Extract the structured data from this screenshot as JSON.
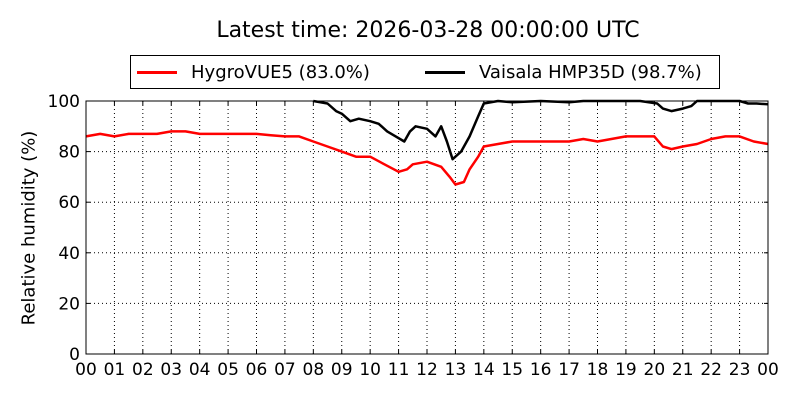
{
  "chart_data": {
    "type": "line",
    "title": "Latest time: 2026-03-28 00:00:00 UTC",
    "xlabel": "",
    "ylabel": "Relative humidity (%)",
    "x_ticks": [
      "00",
      "01",
      "02",
      "03",
      "04",
      "05",
      "06",
      "07",
      "08",
      "09",
      "10",
      "11",
      "12",
      "13",
      "14",
      "15",
      "16",
      "17",
      "18",
      "19",
      "20",
      "21",
      "22",
      "23",
      "00"
    ],
    "xlim": [
      0,
      24
    ],
    "ylim": [
      0,
      100
    ],
    "y_ticks": [
      0,
      20,
      40,
      60,
      80,
      100
    ],
    "grid": true,
    "legend_position": "top",
    "series": [
      {
        "name": "HygroVUE5 (83.0%)",
        "color": "#ff0000",
        "points": [
          [
            0,
            86
          ],
          [
            0.5,
            87
          ],
          [
            1,
            86
          ],
          [
            1.5,
            87
          ],
          [
            2,
            87
          ],
          [
            2.5,
            87
          ],
          [
            3,
            88
          ],
          [
            3.5,
            88
          ],
          [
            4,
            87
          ],
          [
            4.5,
            87
          ],
          [
            5,
            87
          ],
          [
            5.5,
            87
          ],
          [
            6,
            87
          ],
          [
            6.5,
            86.5
          ],
          [
            7,
            86
          ],
          [
            7.5,
            86
          ],
          [
            8,
            84
          ],
          [
            8.5,
            82
          ],
          [
            9,
            80
          ],
          [
            9.5,
            78
          ],
          [
            10,
            78
          ],
          [
            10.5,
            75
          ],
          [
            11,
            72
          ],
          [
            11.3,
            73
          ],
          [
            11.5,
            75
          ],
          [
            12,
            76
          ],
          [
            12.5,
            74
          ],
          [
            12.8,
            70
          ],
          [
            13,
            67
          ],
          [
            13.3,
            68
          ],
          [
            13.5,
            73
          ],
          [
            13.8,
            78
          ],
          [
            14,
            82
          ],
          [
            14.5,
            83
          ],
          [
            15,
            84
          ],
          [
            16,
            84
          ],
          [
            17,
            84
          ],
          [
            17.5,
            85
          ],
          [
            18,
            84
          ],
          [
            19,
            86
          ],
          [
            19.5,
            86
          ],
          [
            20,
            86
          ],
          [
            20.3,
            82
          ],
          [
            20.6,
            81
          ],
          [
            21,
            82
          ],
          [
            21.5,
            83
          ],
          [
            22,
            85
          ],
          [
            22.5,
            86
          ],
          [
            23,
            86
          ],
          [
            23.5,
            84
          ],
          [
            24,
            83
          ]
        ]
      },
      {
        "name": "Vaisala HMP35D (98.7%)",
        "color": "#000000",
        "points": [
          [
            8,
            100
          ],
          [
            8.5,
            99
          ],
          [
            8.8,
            96
          ],
          [
            9,
            95
          ],
          [
            9.3,
            92
          ],
          [
            9.6,
            93
          ],
          [
            10,
            92
          ],
          [
            10.3,
            91
          ],
          [
            10.6,
            88
          ],
          [
            10.9,
            86
          ],
          [
            11.2,
            84
          ],
          [
            11.4,
            88
          ],
          [
            11.6,
            90
          ],
          [
            12,
            89
          ],
          [
            12.3,
            86
          ],
          [
            12.5,
            90
          ],
          [
            12.7,
            84
          ],
          [
            12.9,
            77
          ],
          [
            13.2,
            80
          ],
          [
            13.5,
            86
          ],
          [
            13.8,
            94
          ],
          [
            14,
            99
          ],
          [
            14.5,
            100
          ],
          [
            15,
            99.5
          ],
          [
            16,
            100
          ],
          [
            17,
            99.5
          ],
          [
            17.5,
            100
          ],
          [
            17.8,
            100
          ],
          [
            19.5,
            100
          ],
          [
            20.1,
            99
          ],
          [
            20.3,
            97
          ],
          [
            20.6,
            96
          ],
          [
            21,
            97
          ],
          [
            21.3,
            98
          ],
          [
            21.5,
            100
          ],
          [
            22,
            100
          ],
          [
            23,
            100
          ],
          [
            23.3,
            99
          ],
          [
            23.6,
            99
          ],
          [
            24,
            98.7
          ]
        ]
      }
    ]
  }
}
